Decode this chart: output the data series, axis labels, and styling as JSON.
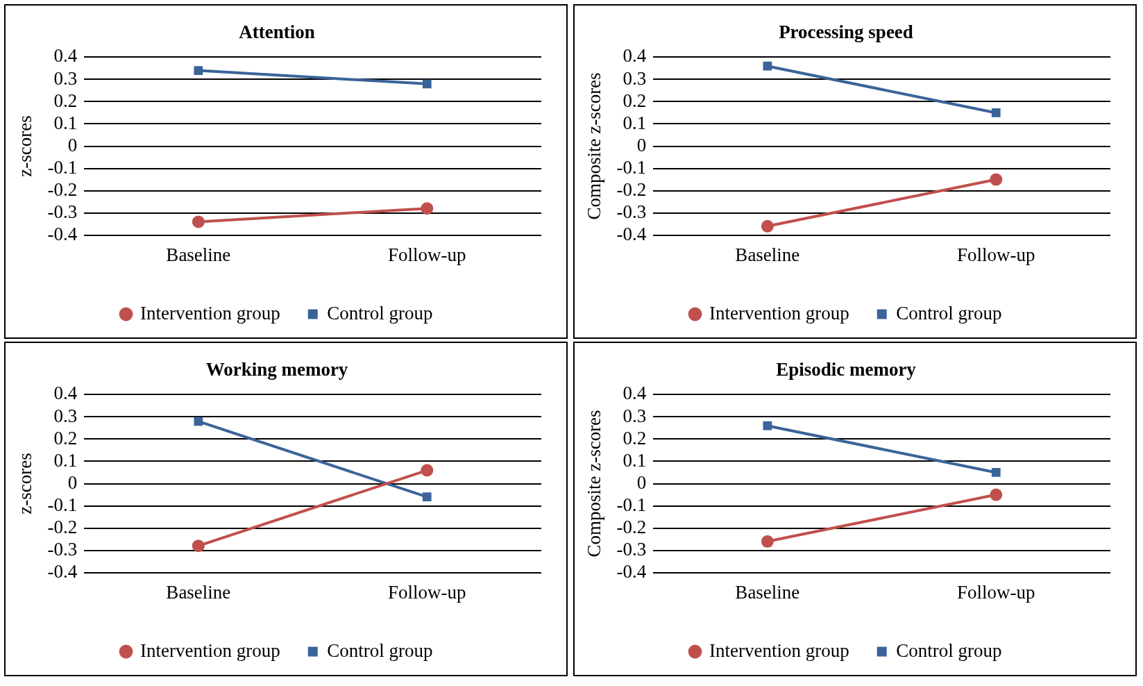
{
  "chart_data": [
    {
      "type": "line",
      "title": "Attention",
      "ylabel": "z-scores",
      "categories": [
        "Baseline",
        "Follow-up"
      ],
      "series": [
        {
          "name": "Intervention group",
          "color": "#c0504d",
          "marker": "circle",
          "values": [
            -0.34,
            -0.28
          ]
        },
        {
          "name": "Control group",
          "color": "#3a6399",
          "marker": "square",
          "values": [
            0.34,
            0.28
          ]
        }
      ],
      "ylim": [
        -0.4,
        0.4
      ],
      "yticks": [
        -0.4,
        -0.3,
        -0.2,
        -0.1,
        0,
        0.1,
        0.2,
        0.3,
        0.4
      ],
      "grid": "y",
      "legend": "bottom"
    },
    {
      "type": "line",
      "title": "Processing speed",
      "ylabel": "Composite z-scores",
      "categories": [
        "Baseline",
        "Follow-up"
      ],
      "series": [
        {
          "name": "Intervention group",
          "color": "#c0504d",
          "marker": "circle",
          "values": [
            -0.36,
            -0.15
          ]
        },
        {
          "name": "Control group",
          "color": "#3a6399",
          "marker": "square",
          "values": [
            0.36,
            0.15
          ]
        }
      ],
      "ylim": [
        -0.4,
        0.4
      ],
      "yticks": [
        -0.4,
        -0.3,
        -0.2,
        -0.1,
        0,
        0.1,
        0.2,
        0.3,
        0.4
      ],
      "grid": "y",
      "legend": "bottom"
    },
    {
      "type": "line",
      "title": "Working memory",
      "ylabel": "z-scores",
      "categories": [
        "Baseline",
        "Follow-up"
      ],
      "series": [
        {
          "name": "Intervention group",
          "color": "#c0504d",
          "marker": "circle",
          "values": [
            -0.28,
            0.06
          ]
        },
        {
          "name": "Control group",
          "color": "#3a6399",
          "marker": "square",
          "values": [
            0.28,
            -0.06
          ]
        }
      ],
      "ylim": [
        -0.4,
        0.4
      ],
      "yticks": [
        -0.4,
        -0.3,
        -0.2,
        -0.1,
        0,
        0.1,
        0.2,
        0.3,
        0.4
      ],
      "grid": "y",
      "legend": "bottom"
    },
    {
      "type": "line",
      "title": "Episodic memory",
      "ylabel": "Composite z-scores",
      "categories": [
        "Baseline",
        "Follow-up"
      ],
      "series": [
        {
          "name": "Intervention group",
          "color": "#c0504d",
          "marker": "circle",
          "values": [
            -0.26,
            -0.05
          ]
        },
        {
          "name": "Control group",
          "color": "#3a6399",
          "marker": "square",
          "values": [
            0.26,
            0.05
          ]
        }
      ],
      "ylim": [
        -0.4,
        0.4
      ],
      "yticks": [
        -0.4,
        -0.3,
        -0.2,
        -0.1,
        0,
        0.1,
        0.2,
        0.3,
        0.4
      ],
      "grid": "y",
      "legend": "bottom"
    }
  ]
}
